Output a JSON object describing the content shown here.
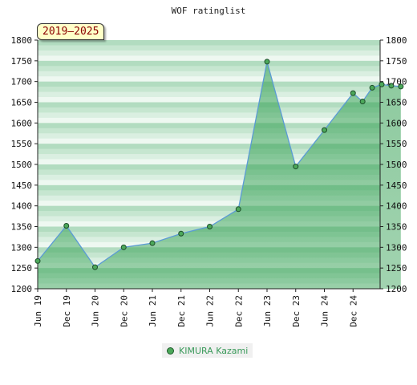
{
  "chart_data": {
    "type": "area",
    "title": "WOF ratinglist",
    "period_label": "2019–2025",
    "ylim": [
      1200,
      1800
    ],
    "y_ticks": [
      1200,
      1250,
      1300,
      1350,
      1400,
      1450,
      1500,
      1550,
      1600,
      1650,
      1700,
      1750,
      1800
    ],
    "x_ticks": [
      "Jun 19",
      "Dec 19",
      "Jun 20",
      "Dec 20",
      "Jun 21",
      "Dec 21",
      "Jun 22",
      "Dec 22",
      "Jun 23",
      "Dec 23",
      "Jun 24",
      "Dec 24"
    ],
    "grid": false,
    "legend_position": "bottom",
    "series": [
      {
        "name": "KIMURA Kazami",
        "color": "#4ca85a",
        "line_color": "#5b9bd5",
        "points": [
          {
            "x": "Jun 19",
            "y": 1267
          },
          {
            "x": "Dec 19",
            "y": 1352
          },
          {
            "x": "Jun 20",
            "y": 1252
          },
          {
            "x": "Dec 20",
            "y": 1300
          },
          {
            "x": "Jun 21",
            "y": 1310
          },
          {
            "x": "Dec 21",
            "y": 1333
          },
          {
            "x": "Jun 22",
            "y": 1350
          },
          {
            "x": "Dec 22",
            "y": 1392
          },
          {
            "x": "Jun 23",
            "y": 1748
          },
          {
            "x": "Dec 23",
            "y": 1495
          },
          {
            "x": "Jun 24",
            "y": 1583
          },
          {
            "x": "Dec 24",
            "y": 1672
          },
          {
            "x": "Feb 25",
            "y": 1652
          },
          {
            "x": "Apr 25",
            "y": 1685
          },
          {
            "x": "Jun 25",
            "y": 1693
          },
          {
            "x": "Aug 25",
            "y": 1690
          },
          {
            "x": "Oct 25",
            "y": 1688
          }
        ]
      }
    ]
  }
}
